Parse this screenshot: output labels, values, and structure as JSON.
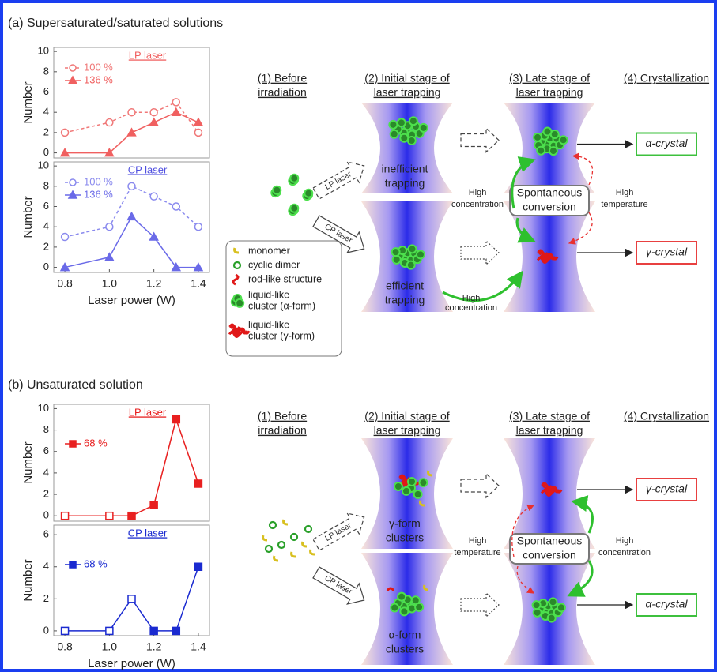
{
  "chart_data": [
    {
      "type": "line",
      "title": "LP laser",
      "title_color": "#f06060",
      "ylabel": "Number",
      "x": [
        0.8,
        1.0,
        1.1,
        1.2,
        1.3,
        1.4
      ],
      "xlim": [
        0.75,
        1.45
      ],
      "ylim": [
        -0.5,
        10.4
      ],
      "yticks": [
        0,
        2,
        4,
        6,
        8,
        10
      ],
      "series": [
        {
          "name": "100 %",
          "color": "#f07878",
          "marker": "circle",
          "filled": false,
          "dashed": true,
          "values": [
            2,
            3,
            4,
            4,
            5,
            2
          ]
        },
        {
          "name": "136 %",
          "color": "#f06060",
          "marker": "triangle",
          "filled": true,
          "dashed": false,
          "values": [
            0,
            0,
            2,
            3,
            4,
            3
          ]
        }
      ]
    },
    {
      "type": "line",
      "title": "CP laser",
      "title_color": "#5050e0",
      "ylabel": "Number",
      "xlabel": "Laser power (W)",
      "x": [
        0.8,
        1.0,
        1.1,
        1.2,
        1.3,
        1.4
      ],
      "xlim": [
        0.75,
        1.45
      ],
      "ylim": [
        -0.5,
        10.4
      ],
      "yticks": [
        0,
        2,
        4,
        6,
        8,
        10
      ],
      "xticks": [
        0.8,
        {
          "value": 1,
          "label": "1.0"
        },
        1.2,
        1.4
      ],
      "series": [
        {
          "name": "100 %",
          "color": "#8a8aee",
          "marker": "circle",
          "filled": false,
          "dashed": true,
          "values": [
            3,
            4,
            8,
            7,
            6,
            4
          ]
        },
        {
          "name": "136 %",
          "color": "#6a6ae8",
          "marker": "triangle",
          "filled": true,
          "dashed": false,
          "values": [
            0,
            1,
            5,
            3,
            0,
            0
          ]
        }
      ]
    },
    {
      "type": "line",
      "title": "LP laser",
      "title_color": "#e82020",
      "ylabel": "Number",
      "x": [
        0.8,
        1.0,
        1.1,
        1.2,
        1.3,
        1.4
      ],
      "xlim": [
        0.75,
        1.45
      ],
      "ylim": [
        -0.5,
        10.4
      ],
      "yticks": [
        0,
        2,
        4,
        6,
        8,
        10
      ],
      "series": [
        {
          "name": "68 %",
          "color": "#e82020",
          "marker": "square",
          "filled": [
            false,
            false,
            true,
            true,
            true,
            true
          ],
          "dashed": false,
          "values": [
            0,
            0,
            0,
            1,
            9,
            3
          ]
        }
      ]
    },
    {
      "type": "line",
      "title": "CP laser",
      "title_color": "#1a2ad0",
      "ylabel": "Number",
      "xlabel": "Laser power (W)",
      "x": [
        0.8,
        1.0,
        1.1,
        1.2,
        1.3,
        1.4
      ],
      "xlim": [
        0.75,
        1.45
      ],
      "ylim": [
        -0.3,
        6.6
      ],
      "yticks": [
        0,
        2,
        4,
        6
      ],
      "xticks": [
        0.8,
        {
          "value": 1,
          "label": "1.0"
        },
        1.2,
        1.4
      ],
      "series": [
        {
          "name": "68 %",
          "color": "#1a2ad0",
          "marker": "square",
          "filled": [
            false,
            false,
            false,
            true,
            true,
            true
          ],
          "dashed": false,
          "values": [
            0,
            0,
            2,
            0,
            0,
            4
          ]
        }
      ]
    }
  ],
  "panel_a": {
    "label": "(a) Supersaturated/saturated solutions",
    "steps": [
      [
        "(1) Before",
        "irradiation"
      ],
      [
        "(2) Initial stage of",
        "laser trapping"
      ],
      [
        "(3) Late stage of",
        "laser trapping"
      ],
      [
        "(4) Crystallization"
      ]
    ],
    "lp_arrow": "LP laser",
    "cp_arrow": "CP laser",
    "upper_label": [
      "inefficient",
      "trapping"
    ],
    "lower_label": [
      "efficient",
      "trapping"
    ],
    "left_condition": [
      "High",
      "concentration"
    ],
    "conversion": [
      "Spontaneous",
      "conversion"
    ],
    "right_condition": [
      "High",
      "temperature"
    ],
    "bottom_condition": [
      "High",
      "concentration"
    ],
    "upper_product": "α-crystal",
    "lower_product": "γ-crystal",
    "legend": [
      [
        "monomer"
      ],
      [
        "cyclic dimer"
      ],
      [
        "rod-like structure"
      ],
      [
        "liquid-like",
        "cluster (α-form)"
      ],
      [
        "liquid-like",
        "cluster (γ-form)"
      ]
    ]
  },
  "panel_b": {
    "label": "(b) Unsaturated solution",
    "steps": [
      [
        "(1) Before",
        "irradiation"
      ],
      [
        "(2) Initial stage of",
        "laser trapping"
      ],
      [
        "(3) Late stage of",
        "laser trapping"
      ],
      [
        "(4) Crystallization"
      ]
    ],
    "lp_arrow": "LP laser",
    "cp_arrow": "CP laser",
    "upper_label": [
      "γ-form",
      "clusters"
    ],
    "lower_label": [
      "α-form",
      "clusters"
    ],
    "left_condition": [
      "High",
      "temperature"
    ],
    "conversion": [
      "Spontaneous",
      "conversion"
    ],
    "right_condition": [
      "High",
      "concentration"
    ],
    "upper_product": "γ-crystal",
    "lower_product": "α-crystal"
  }
}
